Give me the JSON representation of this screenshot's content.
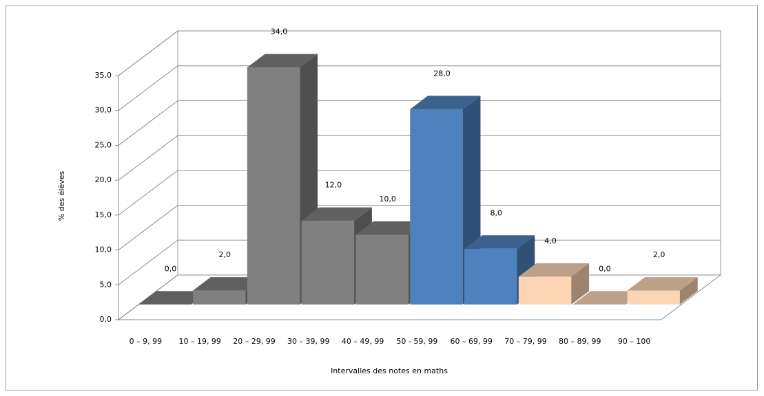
{
  "chart_data": {
    "type": "bar3d",
    "y_label": "% des élèves",
    "x_label": "Intervalles des notes en maths",
    "categories": [
      "0 – 9, 99",
      "10 – 19, 99",
      "20 – 29, 99",
      "30 – 39, 99",
      "40 – 49, 99",
      "50 - 59, 99",
      "60 – 69, 99",
      "70 – 79, 99",
      "80 – 89, 99",
      "90 – 100"
    ],
    "values": [
      0,
      2,
      34,
      12,
      10,
      28,
      8,
      4,
      0,
      2
    ],
    "value_labels": [
      "0,0",
      "2,0",
      "34,0",
      "12,0",
      "10,0",
      "28,0",
      "8,0",
      "4,0",
      "0,0",
      "2,0"
    ],
    "colors": [
      "#808080",
      "#808080",
      "#808080",
      "#808080",
      "#808080",
      "#4f81bd",
      "#4f81bd",
      "#fcd5b5",
      "#fcd5b5",
      "#fcd5b5"
    ],
    "ylim": [
      0,
      35
    ],
    "yticks": [
      {
        "value": 0,
        "label": "0,0"
      },
      {
        "value": 5,
        "label": "5,0"
      },
      {
        "value": 10,
        "label": "10,0"
      },
      {
        "value": 15,
        "label": "15,0"
      },
      {
        "value": 20,
        "label": "20,0"
      },
      {
        "value": 25,
        "label": "25,0"
      },
      {
        "value": 30,
        "label": "30,0"
      },
      {
        "value": 35,
        "label": "35,0"
      }
    ],
    "grid": true
  }
}
